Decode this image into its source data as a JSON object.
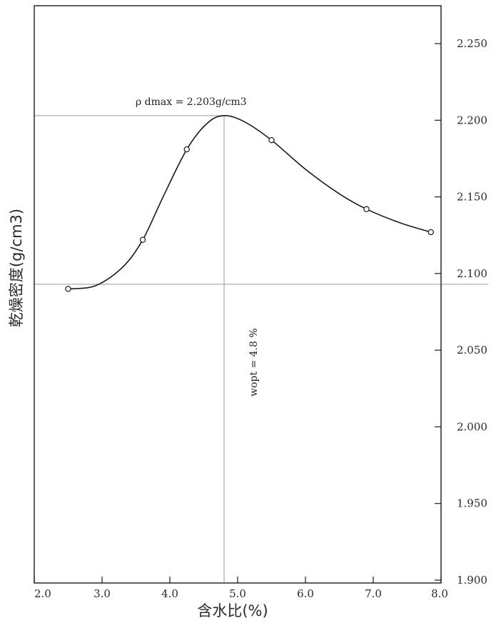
{
  "chart_data": {
    "type": "line",
    "xlabel": "含水比(%)",
    "ylabel": "乾燥密度(g/cm3)",
    "xlim": [
      2.0,
      8.0
    ],
    "ylim": [
      1.9,
      2.25
    ],
    "x_ticks": [
      "2.0",
      "3.0",
      "4.0",
      "5.0",
      "6.0",
      "7.0",
      "8.0"
    ],
    "y_ticks": [
      "1.900",
      "1.950",
      "2.000",
      "2.050",
      "2.100",
      "2.150",
      "2.200",
      "2.250"
    ],
    "y_axis_side": "right",
    "grid": false,
    "points": [
      {
        "x": 2.5,
        "y": 2.09
      },
      {
        "x": 3.6,
        "y": 2.122
      },
      {
        "x": 4.25,
        "y": 2.181
      },
      {
        "x": 5.5,
        "y": 2.187
      },
      {
        "x": 6.9,
        "y": 2.142
      },
      {
        "x": 7.85,
        "y": 2.127
      }
    ],
    "curve": [
      {
        "x": 2.5,
        "y": 2.09
      },
      {
        "x": 2.9,
        "y": 2.092
      },
      {
        "x": 3.3,
        "y": 2.104
      },
      {
        "x": 3.6,
        "y": 2.122
      },
      {
        "x": 3.9,
        "y": 2.15
      },
      {
        "x": 4.25,
        "y": 2.181
      },
      {
        "x": 4.55,
        "y": 2.198
      },
      {
        "x": 4.8,
        "y": 2.203
      },
      {
        "x": 5.1,
        "y": 2.199
      },
      {
        "x": 5.5,
        "y": 2.187
      },
      {
        "x": 6.0,
        "y": 2.168
      },
      {
        "x": 6.5,
        "y": 2.152
      },
      {
        "x": 6.9,
        "y": 2.142
      },
      {
        "x": 7.4,
        "y": 2.133
      },
      {
        "x": 7.85,
        "y": 2.127
      }
    ],
    "reference_lines": {
      "rho_dmax": 2.203,
      "wopt": 4.8,
      "baseline": 2.093
    },
    "annotations": {
      "rho_dmax_label": "ρ dmax = 2.203g/cm3",
      "wopt_label": "wopt = 4.8 %"
    },
    "colors": {
      "curve": "#1a1a1a",
      "axis": "#1a1a1a",
      "reference": "#9a9a9a"
    }
  }
}
